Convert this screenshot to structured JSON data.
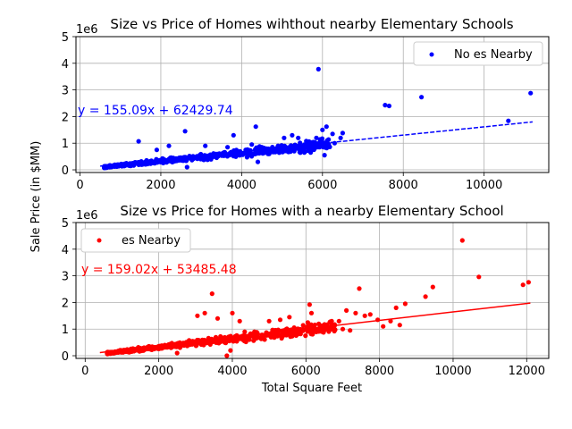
{
  "figure": {
    "ylabel": "Sale Price (in $MM)",
    "xlabel": "Total Square Feet"
  },
  "chart_data": [
    {
      "type": "scatter",
      "title": "Size vs Price of Homes wihthout nearby Elementary Schools",
      "xlabel": "",
      "ylabel": "Sale Price (in $MM)",
      "y_offset_label": "1e6",
      "xlim": [
        -100,
        11600
      ],
      "ylim": [
        -0.1,
        5.0
      ],
      "xticks": [
        0,
        2000,
        4000,
        6000,
        8000,
        10000
      ],
      "yticks": [
        0,
        1,
        2,
        3,
        4,
        5
      ],
      "grid": true,
      "legend_position": "upper right",
      "color": "#0000ff",
      "series": [
        {
          "name": "No es Nearby",
          "regression": {
            "slope": 155.09,
            "intercept": 62429.74,
            "x_range": [
              500,
              11200
            ],
            "label": "y = 155.09x + 62429.74"
          },
          "points": [
            [
              5900,
              3.78
            ],
            [
              7550,
              2.43
            ],
            [
              7650,
              2.4
            ],
            [
              8450,
              2.73
            ],
            [
              11150,
              2.88
            ],
            [
              10600,
              1.84
            ],
            [
              4350,
              1.62
            ],
            [
              6000,
              1.5
            ],
            [
              6100,
              1.62
            ],
            [
              5850,
              1.2
            ],
            [
              6250,
              1.35
            ],
            [
              6500,
              1.38
            ],
            [
              6450,
              1.2
            ],
            [
              1450,
              1.07
            ],
            [
              2600,
              1.45
            ],
            [
              3800,
              1.3
            ],
            [
              5050,
              1.2
            ],
            [
              5250,
              1.3
            ],
            [
              5400,
              1.2
            ],
            [
              5600,
              1.08
            ],
            [
              5800,
              0.85
            ],
            [
              5700,
              0.75
            ],
            [
              6050,
              0.55
            ],
            [
              5550,
              0.65
            ],
            [
              6300,
              1.0
            ],
            [
              6000,
              0.9
            ],
            [
              4500,
              0.85
            ],
            [
              4750,
              0.8
            ],
            [
              4900,
              0.9
            ],
            [
              4250,
              0.95
            ],
            [
              4650,
              0.6
            ],
            [
              4400,
              0.3
            ],
            [
              2650,
              0.1
            ],
            [
              2200,
              0.9
            ],
            [
              1900,
              0.75
            ],
            [
              3100,
              0.9
            ],
            [
              3650,
              0.85
            ],
            [
              4100,
              0.75
            ]
          ]
        }
      ]
    },
    {
      "type": "scatter",
      "title": "Size vs Price for Homes with a nearby Elementary School",
      "xlabel": "Total Square Feet",
      "ylabel": "Sale Price (in $MM)",
      "y_offset_label": "1e6",
      "xlim": [
        -250,
        12600
      ],
      "ylim": [
        -0.1,
        5.0
      ],
      "xticks": [
        0,
        2000,
        4000,
        6000,
        8000,
        10000,
        12000
      ],
      "yticks": [
        0,
        1,
        2,
        3,
        4,
        5
      ],
      "grid": true,
      "legend_position": "upper left",
      "color": "#ff0000",
      "series": [
        {
          "name": "es Nearby",
          "regression": {
            "slope": 159.02,
            "intercept": 53485.48,
            "x_range": [
              400,
              12100
            ],
            "label": "y = 159.02x + 53485.48"
          },
          "points": [
            [
              10250,
              4.33
            ],
            [
              10700,
              2.96
            ],
            [
              11900,
              2.66
            ],
            [
              12050,
              2.76
            ],
            [
              9450,
              2.58
            ],
            [
              9250,
              2.22
            ],
            [
              7450,
              2.52
            ],
            [
              3450,
              2.33
            ],
            [
              8700,
              1.95
            ],
            [
              8450,
              1.8
            ],
            [
              7600,
              1.5
            ],
            [
              7750,
              1.55
            ],
            [
              7350,
              1.6
            ],
            [
              8300,
              1.3
            ],
            [
              8100,
              1.1
            ],
            [
              7950,
              1.35
            ],
            [
              6100,
              1.92
            ],
            [
              6150,
              1.6
            ],
            [
              6050,
              1.25
            ],
            [
              6350,
              1.2
            ],
            [
              6700,
              1.3
            ],
            [
              6900,
              1.3
            ],
            [
              7100,
              1.7
            ],
            [
              6500,
              0.95
            ],
            [
              5550,
              1.45
            ],
            [
              5300,
              1.35
            ],
            [
              5000,
              1.3
            ],
            [
              3600,
              1.4
            ],
            [
              3050,
              1.5
            ],
            [
              3250,
              1.6
            ],
            [
              4000,
              1.6
            ],
            [
              4200,
              1.3
            ],
            [
              3850,
              0.0
            ],
            [
              3950,
              0.2
            ],
            [
              4600,
              0.9
            ],
            [
              7200,
              0.95
            ],
            [
              8550,
              1.15
            ],
            [
              7000,
              1.0
            ],
            [
              2500,
              0.1
            ]
          ]
        }
      ]
    }
  ]
}
